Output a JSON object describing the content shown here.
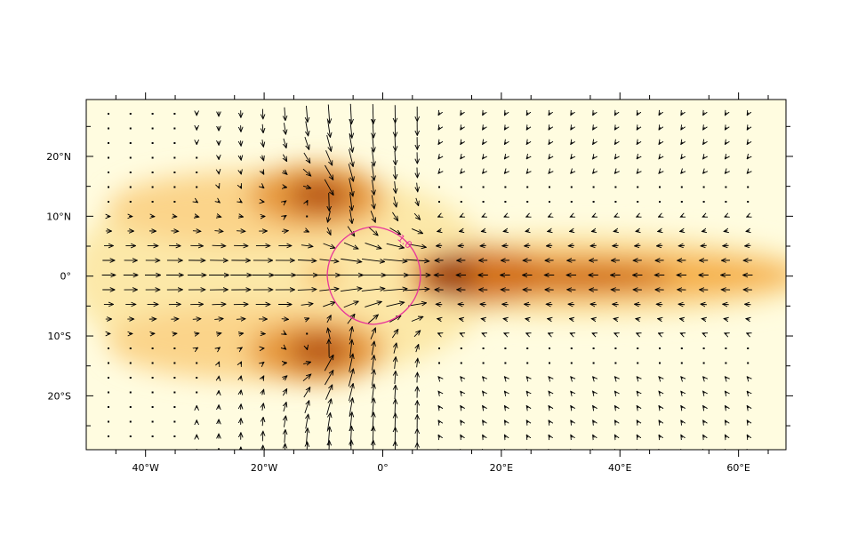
{
  "x_axis": {
    "range": [
      -50,
      68
    ],
    "tick_labels": [
      {
        "value": -40,
        "label": "40°W"
      },
      {
        "value": -20,
        "label": "20°W"
      },
      {
        "value": 0,
        "label": "0°"
      },
      {
        "value": 20,
        "label": "20°E"
      },
      {
        "value": 40,
        "label": "40°E"
      },
      {
        "value": 60,
        "label": "60°E"
      }
    ],
    "minor_ticks": [
      -45,
      -35,
      -25,
      -15,
      -5,
      5,
      15,
      25,
      35,
      45,
      55,
      65
    ]
  },
  "y_axis": {
    "range": [
      -29,
      29.5
    ],
    "tick_labels": [
      {
        "value": 20,
        "label": "20°N"
      },
      {
        "value": 10,
        "label": "10°N"
      },
      {
        "value": 0,
        "label": "0°"
      },
      {
        "value": -10,
        "label": "10°S"
      },
      {
        "value": -20,
        "label": "20°S"
      }
    ],
    "minor_ticks": [
      25,
      15,
      5,
      -5,
      -15,
      -25
    ]
  },
  "contour": {
    "label": "1.0",
    "color": "#e8359a"
  },
  "colors": {
    "shading_low": "#fffce0",
    "shading_mid": "#f5a53a",
    "shading_high": "#8a3a05",
    "vectors": "#000000"
  }
}
